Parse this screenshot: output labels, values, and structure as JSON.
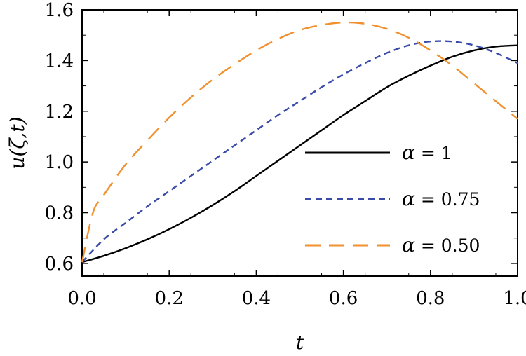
{
  "chart_data": {
    "type": "line",
    "title": "",
    "xlabel": "t",
    "ylabel": "u(ζ,t)",
    "xlim": [
      0.0,
      1.0
    ],
    "ylim": [
      0.55,
      1.6
    ],
    "xticks": [
      0.0,
      0.2,
      0.4,
      0.6,
      0.8,
      1.0
    ],
    "xtick_labels": [
      "0.0",
      "0.2",
      "0.4",
      "0.6",
      "0.8",
      "1.0"
    ],
    "yticks": [
      0.6,
      0.8,
      1.0,
      1.2,
      1.4,
      1.6
    ],
    "ytick_labels": [
      "0.6",
      "0.8",
      "1.0",
      "1.2",
      "1.4",
      "1.6"
    ],
    "grid": false,
    "legend_position": "right-middle",
    "series": [
      {
        "name": "α = 1",
        "legend_symbol": "α",
        "legend_value": "= 1",
        "color": "#000000",
        "style": "solid",
        "x": [
          0.0,
          0.05,
          0.1,
          0.15,
          0.2,
          0.25,
          0.3,
          0.35,
          0.4,
          0.45,
          0.5,
          0.55,
          0.6,
          0.65,
          0.7,
          0.75,
          0.8,
          0.85,
          0.9,
          0.95,
          1.0
        ],
        "y": [
          0.605,
          0.63,
          0.66,
          0.695,
          0.735,
          0.78,
          0.83,
          0.885,
          0.945,
          1.005,
          1.065,
          1.125,
          1.185,
          1.24,
          1.295,
          1.34,
          1.38,
          1.415,
          1.44,
          1.455,
          1.46
        ]
      },
      {
        "name": "α = 0.75",
        "legend_symbol": "α",
        "legend_value": "= 0.75",
        "color": "#3a4ba8",
        "style": "short-dash",
        "x": [
          0.0,
          0.05,
          0.1,
          0.15,
          0.2,
          0.25,
          0.3,
          0.35,
          0.4,
          0.45,
          0.5,
          0.55,
          0.6,
          0.65,
          0.7,
          0.75,
          0.8,
          0.85,
          0.9,
          0.95,
          1.0
        ],
        "y": [
          0.605,
          0.695,
          0.76,
          0.825,
          0.885,
          0.945,
          1.005,
          1.065,
          1.125,
          1.185,
          1.24,
          1.295,
          1.345,
          1.39,
          1.43,
          1.46,
          1.475,
          1.475,
          1.46,
          1.43,
          1.39
        ]
      },
      {
        "name": "α = 0.50",
        "legend_symbol": "α",
        "legend_value": "= 0.50",
        "color": "#f0902e",
        "style": "long-dash",
        "x": [
          0.0,
          0.025,
          0.05,
          0.1,
          0.15,
          0.2,
          0.25,
          0.3,
          0.35,
          0.4,
          0.45,
          0.5,
          0.55,
          0.6,
          0.65,
          0.7,
          0.75,
          0.8,
          0.85,
          0.9,
          0.95,
          1.0
        ],
        "y": [
          0.605,
          0.8,
          0.87,
          0.99,
          1.085,
          1.175,
          1.255,
          1.325,
          1.385,
          1.44,
          1.485,
          1.52,
          1.54,
          1.55,
          1.545,
          1.525,
          1.49,
          1.44,
          1.38,
          1.31,
          1.24,
          1.17
        ]
      }
    ]
  }
}
